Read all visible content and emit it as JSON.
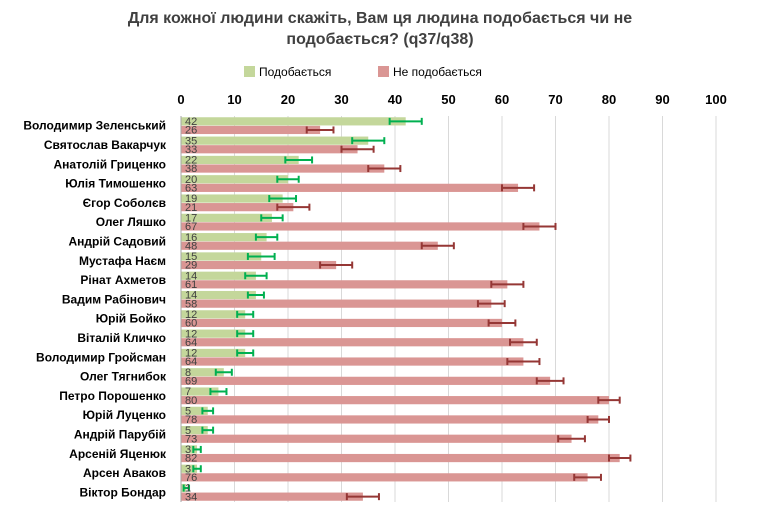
{
  "chart_data": {
    "type": "bar",
    "orientation": "horizontal",
    "title_lines": [
      "Для кожної людини скажіть, Вам ця людина подобається чи не",
      "подобається? (q37/q38)"
    ],
    "xlim": [
      0,
      100
    ],
    "xticks": [
      0,
      10,
      20,
      30,
      40,
      50,
      60,
      70,
      80,
      90,
      100
    ],
    "legend_position": "top",
    "categories": [
      "Володимир Зеленський",
      "Святослав Вакарчук",
      "Анатолій Гриценко",
      "Юлія Тимошенко",
      "Єгор Соболєв",
      "Олег Ляшко",
      "Андрій Садовий",
      "Мустафа Наєм",
      "Рінат Ахметов",
      "Вадим Рабінович",
      "Юрій Бойко",
      "Віталій Кличко",
      "Володимир Гройсман",
      "Олег Тягнибок",
      "Петро Порошенко",
      "Юрій Луценко",
      "Андрій Парубій",
      "Арсеній Яценюк",
      "Арсен Аваков",
      "Віктор Бондар"
    ],
    "series": [
      {
        "name": "Подобається",
        "color": "#c4d79b",
        "error_color": "#00b050",
        "values": [
          42,
          35,
          22,
          20,
          19,
          17,
          16,
          15,
          14,
          14,
          12,
          12,
          12,
          8,
          7,
          5,
          5,
          3,
          3,
          1
        ],
        "error": [
          3,
          3,
          2.5,
          2,
          2.5,
          2,
          2,
          2.5,
          2,
          1.5,
          1.5,
          1.5,
          1.5,
          1.5,
          1.5,
          1,
          1,
          0.7,
          0.7,
          0.5
        ]
      },
      {
        "name": "Не подобається",
        "color": "#da9694",
        "error_color": "#953735",
        "values": [
          26,
          33,
          38,
          63,
          21,
          67,
          48,
          29,
          61,
          58,
          60,
          64,
          64,
          69,
          80,
          78,
          73,
          82,
          76,
          34
        ],
        "error": [
          2.5,
          3,
          3,
          3,
          3,
          3,
          3,
          3,
          3,
          2.5,
          2.5,
          2.5,
          3,
          2.5,
          2,
          2,
          2.5,
          2,
          2.5,
          3
        ]
      }
    ]
  }
}
